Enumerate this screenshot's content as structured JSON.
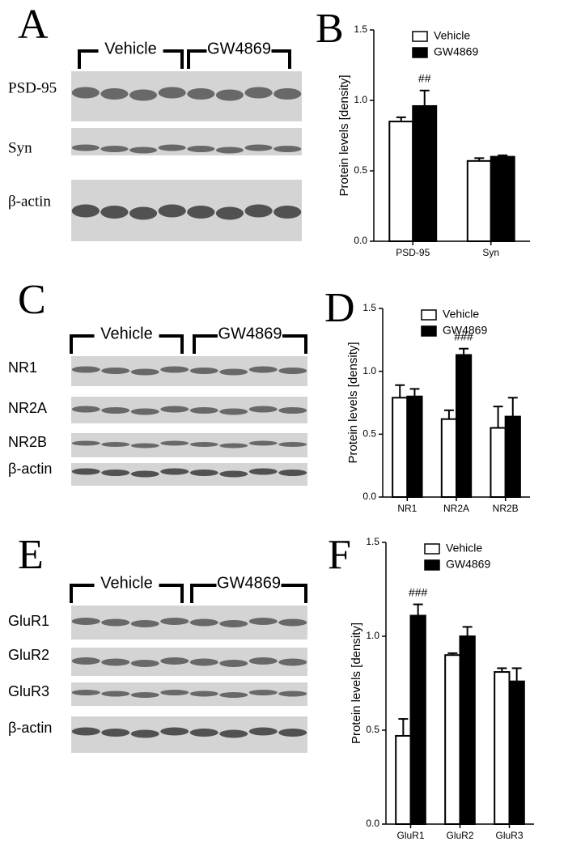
{
  "blots": [
    {
      "letter": "A",
      "groups": [
        "Vehicle",
        "GW4869"
      ],
      "rows": [
        "PSD-95",
        "Syn",
        "β-actin"
      ]
    },
    {
      "letter": "C",
      "groups": [
        "Vehicle",
        "GW4869"
      ],
      "rows": [
        "NR1",
        "NR2A",
        "NR2B",
        "β-actin"
      ]
    },
    {
      "letter": "E",
      "groups": [
        "Vehicle",
        "GW4869"
      ],
      "rows": [
        "GluR1",
        "GluR2",
        "GluR3",
        "β-actin"
      ]
    }
  ],
  "chart_data": [
    {
      "type": "bar",
      "panel_label": "B",
      "y_label": "Protein levels [density]",
      "categories": [
        "PSD-95",
        "Syn"
      ],
      "series": [
        {
          "name": "Vehicle",
          "color": "#ffffff",
          "values": [
            0.85,
            0.57
          ],
          "errors": [
            0.03,
            0.02
          ]
        },
        {
          "name": "GW4869",
          "color": "#000000",
          "values": [
            0.96,
            0.6
          ],
          "errors": [
            0.11,
            0.01
          ]
        }
      ],
      "annotation": "##",
      "ylim": [
        0,
        1.5
      ],
      "yticks": [
        {
          "value": 0,
          "label": "0.0"
        },
        {
          "value": 0.5,
          "label": "0.5"
        },
        {
          "value": 1,
          "label": "1.0"
        },
        {
          "value": 1.5,
          "label": "1.5"
        }
      ]
    },
    {
      "type": "bar",
      "panel_label": "D",
      "y_label": "Protein levels [density]",
      "categories": [
        "NR1",
        "NR2A",
        "NR2B"
      ],
      "series": [
        {
          "name": "Vehicle",
          "color": "#ffffff",
          "values": [
            0.79,
            0.62,
            0.55
          ],
          "errors": [
            0.1,
            0.07,
            0.17
          ]
        },
        {
          "name": "GW4869",
          "color": "#000000",
          "values": [
            0.8,
            1.13,
            0.64
          ],
          "errors": [
            0.06,
            0.05,
            0.15
          ]
        }
      ],
      "annotation": "###",
      "ylim": [
        0,
        1.5
      ],
      "yticks": [
        {
          "value": 0,
          "label": "0.0"
        },
        {
          "value": 0.5,
          "label": "0.5"
        },
        {
          "value": 1,
          "label": "1.0"
        },
        {
          "value": 1.5,
          "label": "1.5"
        }
      ]
    },
    {
      "type": "bar",
      "panel_label": "F",
      "y_label": "Protein levels [density]",
      "categories": [
        "GluR1",
        "GluR2",
        "GluR3"
      ],
      "series": [
        {
          "name": "Vehicle",
          "color": "#ffffff",
          "values": [
            0.47,
            0.9,
            0.81
          ],
          "errors": [
            0.09,
            0.01,
            0.02
          ]
        },
        {
          "name": "GW4869",
          "color": "#000000",
          "values": [
            1.11,
            1.0,
            0.76
          ],
          "errors": [
            0.06,
            0.05,
            0.07
          ]
        }
      ],
      "annotation": "###",
      "ylim": [
        0,
        1.5
      ],
      "yticks": [
        {
          "value": 0,
          "label": "0.0"
        },
        {
          "value": 0.5,
          "label": "0.5"
        },
        {
          "value": 1,
          "label": "1.0"
        },
        {
          "value": 1.5,
          "label": "1.5"
        }
      ]
    }
  ]
}
